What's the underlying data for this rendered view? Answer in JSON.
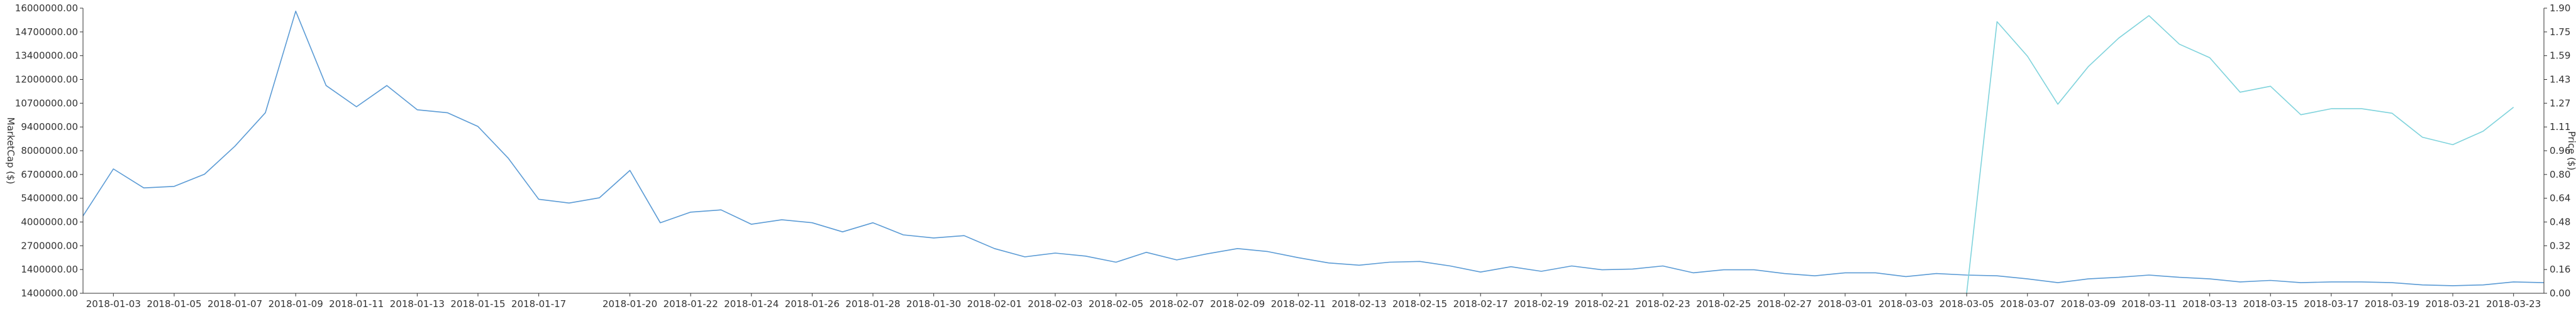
{
  "chart_data": {
    "type": "line",
    "x": [
      "2018-01-02",
      "2018-01-03",
      "2018-01-04",
      "2018-01-05",
      "2018-01-06",
      "2018-01-07",
      "2018-01-08",
      "2018-01-09",
      "2018-01-10",
      "2018-01-11",
      "2018-01-12",
      "2018-01-13",
      "2018-01-14",
      "2018-01-15",
      "2018-01-16",
      "2018-01-17",
      "2018-01-18",
      "2018-01-19",
      "2018-01-20",
      "2018-01-21",
      "2018-01-22",
      "2018-01-23",
      "2018-01-24",
      "2018-01-25",
      "2018-01-26",
      "2018-01-27",
      "2018-01-28",
      "2018-01-29",
      "2018-01-30",
      "2018-01-31",
      "2018-02-01",
      "2018-02-02",
      "2018-02-03",
      "2018-02-04",
      "2018-02-05",
      "2018-02-06",
      "2018-02-07",
      "2018-02-08",
      "2018-02-09",
      "2018-02-10",
      "2018-02-11",
      "2018-02-12",
      "2018-02-13",
      "2018-02-14",
      "2018-02-15",
      "2018-02-16",
      "2018-02-17",
      "2018-02-18",
      "2018-02-19",
      "2018-02-20",
      "2018-02-21",
      "2018-02-22",
      "2018-02-23",
      "2018-02-24",
      "2018-02-25",
      "2018-02-26",
      "2018-02-27",
      "2018-02-28",
      "2018-03-01",
      "2018-03-02",
      "2018-03-03",
      "2018-03-04",
      "2018-03-05",
      "2018-03-06",
      "2018-03-07",
      "2018-03-08",
      "2018-03-09",
      "2018-03-10",
      "2018-03-11",
      "2018-03-12",
      "2018-03-13",
      "2018-03-14",
      "2018-03-15",
      "2018-03-16",
      "2018-03-17",
      "2018-03-18",
      "2018-03-19",
      "2018-03-20",
      "2018-03-21",
      "2018-03-22",
      "2018-03-23",
      "2018-03-24"
    ],
    "series": [
      {
        "axis": "left",
        "color": "#5b9bd5",
        "values": [
          2300000,
          5400000,
          4150000,
          4250000,
          5050000,
          6900000,
          9100000,
          15800000,
          10900000,
          9500000,
          10900000,
          9300000,
          9100000,
          8200000,
          6100000,
          3400000,
          3150000,
          3500000,
          5300000,
          1850000,
          2550000,
          2700000,
          1750000,
          2050000,
          1850000,
          1250000,
          1850000,
          1050000,
          850000,
          1000000,
          150000,
          -400000,
          -150000,
          -350000,
          -750000,
          -100000,
          -600000,
          -200000,
          150000,
          -50000,
          -450000,
          -800000,
          -950000,
          -750000,
          -700000,
          -1000000,
          -1400000,
          -1050000,
          -1350000,
          -1000000,
          -1250000,
          -1200000,
          -1000000,
          -1450000,
          -1250000,
          -1250000,
          -1500000,
          -1650000,
          -1450000,
          -1450000,
          -1700000,
          -1500000,
          -1600000,
          -1650000,
          -1850000,
          -2100000,
          -1850000,
          -1750000,
          -1600000,
          -1750000,
          -1850000,
          -2050000,
          -1950000,
          -2100000,
          -2050000,
          -2050000,
          -2100000,
          -2250000,
          -2300000,
          -2250000,
          -2050000,
          -2100000
        ]
      },
      {
        "axis": "right",
        "color": "#7fd3dc",
        "values": [
          null,
          null,
          null,
          null,
          null,
          null,
          null,
          null,
          null,
          null,
          null,
          null,
          null,
          null,
          null,
          null,
          null,
          null,
          null,
          null,
          null,
          null,
          null,
          null,
          null,
          null,
          null,
          null,
          null,
          null,
          null,
          null,
          null,
          null,
          null,
          null,
          null,
          null,
          null,
          null,
          null,
          null,
          null,
          null,
          null,
          null,
          null,
          null,
          null,
          null,
          null,
          null,
          null,
          null,
          null,
          null,
          null,
          null,
          null,
          null,
          null,
          null,
          0.0,
          1.81,
          1.58,
          1.26,
          1.51,
          1.7,
          1.85,
          1.66,
          1.57,
          1.34,
          1.38,
          1.19,
          1.23,
          1.23,
          1.2,
          1.04,
          0.99,
          1.08,
          1.24,
          null
        ]
      }
    ],
    "x_ticks": [
      "2018-01-03",
      "2018-01-05",
      "2018-01-07",
      "2018-01-09",
      "2018-01-11",
      "2018-01-13",
      "2018-01-15",
      "2018-01-17",
      "2018-01-20",
      "2018-01-22",
      "2018-01-24",
      "2018-01-26",
      "2018-01-28",
      "2018-01-30",
      "2018-02-01",
      "2018-02-03",
      "2018-02-05",
      "2018-02-07",
      "2018-02-09",
      "2018-02-11",
      "2018-02-13",
      "2018-02-15",
      "2018-02-17",
      "2018-02-19",
      "2018-02-21",
      "2018-02-23",
      "2018-02-25",
      "2018-02-27",
      "2018-03-01",
      "2018-03-03",
      "2018-03-05",
      "2018-03-07",
      "2018-03-09",
      "2018-03-11",
      "2018-03-13",
      "2018-03-15",
      "2018-03-17",
      "2018-03-19",
      "2018-03-21",
      "2018-03-23"
    ],
    "y_left_ticks": [
      "1400000.00",
      "1400000.00",
      "2700000.00",
      "4000000.00",
      "5400000.00",
      "6700000.00",
      "8000000.00",
      "9400000.00",
      "10700000.00",
      "12000000.00",
      "13400000.00",
      "14700000.00",
      "16000000.00"
    ],
    "y_left_ylim": [
      -2800000,
      16000000
    ],
    "y_right_ticks": [
      "0.00",
      "0.16",
      "0.32",
      "0.48",
      "0.64",
      "0.80",
      "0.96",
      "1.11",
      "1.27",
      "1.43",
      "1.59",
      "1.75",
      "1.90"
    ],
    "y_right_ylim": [
      0,
      1.9
    ],
    "ylabel_left": "MarketCap ($)",
    "ylabel_right": "Price ($)",
    "grid": false,
    "legend": "none"
  }
}
